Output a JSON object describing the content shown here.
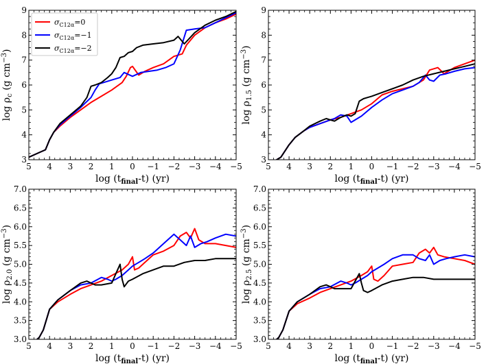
{
  "chart_data": [
    {
      "type": "line",
      "panel": "top-left",
      "xlabel": "log (t",
      "xlabel_sub": "final",
      "xlabel_tail": "-t) (yr)",
      "ylabel_prefix": "log ρ",
      "ylabel_sub": "c",
      "ylabel_suffix": " (g cm",
      "ylabel_sup": "−3",
      "ylabel_close": ")",
      "xlim": [
        5,
        -5
      ],
      "ylim": [
        3,
        9
      ],
      "xticks": [
        "5",
        "4",
        "3",
        "2",
        "1",
        "0",
        "−1",
        "−2",
        "−3",
        "−4",
        "−5"
      ],
      "yticks": [
        "3",
        "4",
        "5",
        "6",
        "7",
        "8",
        "9"
      ],
      "legend": {
        "position": "top-left",
        "entries": [
          {
            "label": "σ",
            "sub": "C12α",
            "value": "=0",
            "color": "#ff0000"
          },
          {
            "label": "σ",
            "sub": "C12α",
            "value": "=−1",
            "color": "#0000ff"
          },
          {
            "label": "σ",
            "sub": "C12α",
            "value": "=−2",
            "color": "#000000"
          }
        ]
      },
      "series": [
        {
          "name": "σC12α=0",
          "color": "#ff0000",
          "x": [
            5,
            4.6,
            4.2,
            4.0,
            3.8,
            3.5,
            3.0,
            2.5,
            2.0,
            1.5,
            1.0,
            0.5,
            0.3,
            0.1,
            0.0,
            -0.3,
            -0.6,
            -1.0,
            -1.5,
            -2.0,
            -2.2,
            -2.4,
            -2.6,
            -3.0,
            -3.5,
            -4.0,
            -4.5,
            -5.0
          ],
          "y": [
            3.1,
            3.25,
            3.4,
            3.8,
            4.1,
            4.35,
            4.7,
            5.0,
            5.3,
            5.55,
            5.8,
            6.1,
            6.35,
            6.7,
            6.75,
            6.4,
            6.55,
            6.7,
            6.85,
            7.15,
            7.2,
            7.25,
            7.6,
            8.0,
            8.3,
            8.5,
            8.65,
            8.85
          ]
        },
        {
          "name": "σC12α=−1",
          "color": "#0000ff",
          "x": [
            5,
            4.6,
            4.2,
            4.0,
            3.8,
            3.5,
            3.0,
            2.5,
            2.0,
            1.8,
            1.6,
            1.4,
            1.0,
            0.6,
            0.4,
            0.0,
            -0.4,
            -0.8,
            -1.2,
            -1.6,
            -2.0,
            -2.3,
            -2.6,
            -3.0,
            -3.5,
            -4.0,
            -4.5,
            -5.0
          ],
          "y": [
            3.1,
            3.25,
            3.4,
            3.8,
            4.1,
            4.4,
            4.75,
            5.1,
            5.5,
            5.8,
            6.05,
            6.1,
            6.2,
            6.3,
            6.5,
            6.35,
            6.5,
            6.55,
            6.6,
            6.7,
            6.85,
            7.4,
            8.2,
            8.25,
            8.3,
            8.5,
            8.7,
            8.9
          ]
        },
        {
          "name": "σC12α=−2",
          "color": "#000000",
          "x": [
            5,
            4.6,
            4.2,
            4.0,
            3.8,
            3.5,
            3.0,
            2.5,
            2.2,
            2.0,
            1.8,
            1.5,
            1.2,
            1.0,
            0.8,
            0.6,
            0.4,
            0.2,
            0.0,
            -0.2,
            -0.5,
            -1.0,
            -1.5,
            -2.0,
            -2.2,
            -2.5,
            -3.0,
            -3.5,
            -4.0,
            -4.5,
            -5.0
          ],
          "y": [
            3.1,
            3.25,
            3.4,
            3.8,
            4.1,
            4.45,
            4.8,
            5.15,
            5.5,
            5.95,
            6.0,
            6.1,
            6.3,
            6.45,
            6.7,
            7.1,
            7.15,
            7.3,
            7.35,
            7.5,
            7.6,
            7.65,
            7.7,
            7.8,
            7.95,
            7.65,
            8.1,
            8.4,
            8.6,
            8.75,
            8.95
          ]
        }
      ]
    },
    {
      "type": "line",
      "panel": "top-right",
      "xlabel": "log (t",
      "xlabel_sub": "final",
      "xlabel_tail": "-t) (yr)",
      "ylabel_prefix": "log ρ",
      "ylabel_sub": "1.5",
      "ylabel_suffix": " (g cm",
      "ylabel_sup": "−3",
      "ylabel_close": ")",
      "xlim": [
        5,
        -5
      ],
      "ylim": [
        3,
        9
      ],
      "xticks": [
        "5",
        "4",
        "3",
        "2",
        "1",
        "0",
        "−1",
        "−2",
        "−3",
        "−4",
        "−5"
      ],
      "yticks": [
        "3",
        "4",
        "5",
        "6",
        "7",
        "8",
        "9"
      ],
      "series": [
        {
          "name": "σC12α=0",
          "color": "#ff0000",
          "x": [
            4.8,
            4.4,
            4.0,
            3.7,
            3.3,
            3.0,
            2.5,
            2.0,
            1.5,
            1.0,
            0.5,
            0.0,
            -0.5,
            -1.0,
            -1.5,
            -2.0,
            -2.5,
            -2.8,
            -3.2,
            -3.5,
            -4.0,
            -4.5,
            -5.0
          ],
          "y": [
            2.9,
            3.1,
            3.6,
            3.9,
            4.15,
            4.3,
            4.45,
            4.6,
            4.7,
            4.85,
            5.0,
            5.25,
            5.6,
            5.75,
            5.85,
            5.95,
            6.2,
            6.6,
            6.7,
            6.45,
            6.7,
            6.85,
            7.0
          ]
        },
        {
          "name": "σC12α=−1",
          "color": "#0000ff",
          "x": [
            4.8,
            4.4,
            4.0,
            3.7,
            3.3,
            3.0,
            2.5,
            2.0,
            1.8,
            1.5,
            1.2,
            1.0,
            0.5,
            0.0,
            -0.5,
            -1.0,
            -1.5,
            -2.0,
            -2.3,
            -2.6,
            -2.8,
            -3.0,
            -3.3,
            -3.6,
            -4.0,
            -4.5,
            -5.0
          ],
          "y": [
            2.9,
            3.1,
            3.6,
            3.9,
            4.15,
            4.3,
            4.45,
            4.6,
            4.65,
            4.8,
            4.75,
            4.5,
            4.75,
            5.1,
            5.4,
            5.65,
            5.8,
            5.95,
            6.1,
            6.4,
            6.2,
            6.15,
            6.4,
            6.45,
            6.55,
            6.65,
            6.7
          ]
        },
        {
          "name": "σC12α=−2",
          "color": "#000000",
          "x": [
            4.8,
            4.4,
            4.0,
            3.7,
            3.3,
            3.0,
            2.5,
            2.2,
            2.0,
            1.8,
            1.5,
            1.2,
            1.0,
            0.8,
            0.6,
            0.4,
            0.2,
            0.0,
            -0.5,
            -1.0,
            -1.5,
            -2.0,
            -2.5,
            -3.0,
            -3.5,
            -4.0,
            -4.5,
            -5.0
          ],
          "y": [
            2.9,
            3.1,
            3.6,
            3.9,
            4.15,
            4.35,
            4.55,
            4.65,
            4.6,
            4.55,
            4.7,
            4.8,
            4.75,
            4.85,
            5.35,
            5.45,
            5.5,
            5.55,
            5.7,
            5.85,
            6.0,
            6.2,
            6.35,
            6.45,
            6.55,
            6.65,
            6.75,
            6.85
          ]
        }
      ]
    },
    {
      "type": "line",
      "panel": "bottom-left",
      "xlabel": "log (t",
      "xlabel_sub": "final",
      "xlabel_tail": "-t) (yr)",
      "ylabel_prefix": "log ρ",
      "ylabel_sub": "2.0",
      "ylabel_suffix": " (g cm",
      "ylabel_sup": "−3",
      "ylabel_close": ")",
      "xlim": [
        5,
        -5
      ],
      "ylim": [
        3.0,
        7.0
      ],
      "xticks": [
        "5",
        "4",
        "3",
        "2",
        "1",
        "0",
        "−1",
        "−2",
        "−3",
        "−4",
        "−5"
      ],
      "yticks": [
        "3.0",
        "3.5",
        "4.0",
        "4.5",
        "5.0",
        "5.5",
        "6.0",
        "6.5",
        "7.0"
      ],
      "series": [
        {
          "name": "σC12α=0",
          "color": "#ff0000",
          "x": [
            4.8,
            4.5,
            4.3,
            4.0,
            3.6,
            3.0,
            2.5,
            2.0,
            1.5,
            1.0,
            0.5,
            0.2,
            0.0,
            -0.1,
            -0.3,
            -0.6,
            -1.0,
            -1.5,
            -2.0,
            -2.3,
            -2.6,
            -2.8,
            -3.0,
            -3.2,
            -3.5,
            -4.0,
            -4.5,
            -5.0
          ],
          "y": [
            2.9,
            3.05,
            3.25,
            3.8,
            4.0,
            4.2,
            4.35,
            4.45,
            4.55,
            4.7,
            4.85,
            5.0,
            5.2,
            4.85,
            4.9,
            5.05,
            5.25,
            5.35,
            5.5,
            5.75,
            5.85,
            5.7,
            5.95,
            5.65,
            5.55,
            5.55,
            5.5,
            5.45
          ]
        },
        {
          "name": "σC12α=−1",
          "color": "#0000ff",
          "x": [
            4.8,
            4.5,
            4.3,
            4.0,
            3.6,
            3.0,
            2.5,
            2.0,
            1.5,
            1.2,
            1.0,
            0.8,
            0.5,
            0.2,
            0.0,
            -0.3,
            -0.6,
            -1.0,
            -1.5,
            -2.0,
            -2.3,
            -2.6,
            -2.8,
            -3.0,
            -3.3,
            -3.6,
            -4.0,
            -4.5,
            -5.0
          ],
          "y": [
            2.9,
            3.05,
            3.25,
            3.8,
            4.05,
            4.3,
            4.45,
            4.5,
            4.65,
            4.6,
            4.55,
            4.6,
            4.7,
            4.85,
            4.95,
            5.05,
            5.15,
            5.3,
            5.55,
            5.8,
            5.65,
            5.5,
            5.75,
            5.45,
            5.55,
            5.6,
            5.7,
            5.8,
            5.75
          ]
        },
        {
          "name": "σC12α=−2",
          "color": "#000000",
          "x": [
            4.8,
            4.5,
            4.3,
            4.0,
            3.6,
            3.0,
            2.5,
            2.2,
            2.0,
            1.8,
            1.5,
            1.0,
            0.8,
            0.6,
            0.5,
            0.4,
            0.2,
            0.0,
            -0.5,
            -1.0,
            -1.5,
            -2.0,
            -2.5,
            -3.0,
            -3.5,
            -4.0,
            -4.5,
            -5.0
          ],
          "y": [
            2.9,
            3.05,
            3.25,
            3.8,
            4.05,
            4.3,
            4.5,
            4.55,
            4.5,
            4.45,
            4.45,
            4.5,
            4.75,
            5.0,
            4.6,
            4.4,
            4.55,
            4.6,
            4.75,
            4.85,
            4.95,
            4.95,
            5.05,
            5.1,
            5.1,
            5.15,
            5.15,
            5.15
          ]
        }
      ]
    },
    {
      "type": "line",
      "panel": "bottom-right",
      "xlabel": "log (t",
      "xlabel_sub": "final",
      "xlabel_tail": "-t) (yr)",
      "ylabel_prefix": "log ρ",
      "ylabel_sub": "2.5",
      "ylabel_suffix": " (g cm",
      "ylabel_sup": "−3",
      "ylabel_close": ")",
      "xlim": [
        5,
        -5
      ],
      "ylim": [
        3.0,
        7.0
      ],
      "xticks": [
        "5",
        "4",
        "3",
        "2",
        "1",
        "0",
        "−1",
        "−2",
        "−3",
        "−4",
        "−5"
      ],
      "yticks": [
        "3.0",
        "3.5",
        "4.0",
        "4.5",
        "5.0",
        "5.5",
        "6.0",
        "6.5",
        "7.0"
      ],
      "series": [
        {
          "name": "σC12α=0",
          "color": "#ff0000",
          "x": [
            4.8,
            4.5,
            4.3,
            4.0,
            3.6,
            3.0,
            2.5,
            2.0,
            1.5,
            1.0,
            0.5,
            0.2,
            0.0,
            -0.1,
            -0.3,
            -0.6,
            -1.0,
            -1.5,
            -2.0,
            -2.3,
            -2.6,
            -2.8,
            -3.0,
            -3.2,
            -3.5,
            -4.0,
            -4.5,
            -5.0
          ],
          "y": [
            2.9,
            3.05,
            3.25,
            3.75,
            3.95,
            4.1,
            4.25,
            4.35,
            4.45,
            4.55,
            4.7,
            4.8,
            4.95,
            4.6,
            4.55,
            4.7,
            4.95,
            5.0,
            5.05,
            5.3,
            5.4,
            5.3,
            5.45,
            5.25,
            5.2,
            5.15,
            5.1,
            5.0
          ]
        },
        {
          "name": "σC12α=−1",
          "color": "#0000ff",
          "x": [
            4.8,
            4.5,
            4.3,
            4.0,
            3.6,
            3.0,
            2.5,
            2.0,
            1.5,
            1.2,
            1.0,
            0.8,
            0.5,
            0.2,
            0.0,
            -0.3,
            -0.6,
            -1.0,
            -1.5,
            -2.0,
            -2.3,
            -2.6,
            -2.8,
            -3.0,
            -3.3,
            -3.6,
            -4.0,
            -4.5,
            -5.0
          ],
          "y": [
            2.9,
            3.05,
            3.25,
            3.75,
            4.0,
            4.2,
            4.35,
            4.4,
            4.55,
            4.5,
            4.45,
            4.5,
            4.6,
            4.7,
            4.8,
            4.9,
            5.0,
            5.15,
            5.25,
            5.25,
            5.15,
            5.1,
            5.25,
            5.0,
            5.1,
            5.15,
            5.2,
            5.25,
            5.2
          ]
        },
        {
          "name": "σC12α=−2",
          "color": "#000000",
          "x": [
            4.8,
            4.5,
            4.3,
            4.0,
            3.6,
            3.0,
            2.5,
            2.2,
            2.0,
            1.8,
            1.5,
            1.0,
            0.8,
            0.6,
            0.5,
            0.4,
            0.2,
            0.0,
            -0.5,
            -1.0,
            -1.5,
            -2.0,
            -2.5,
            -3.0,
            -3.5,
            -4.0,
            -4.5,
            -5.0
          ],
          "y": [
            2.9,
            3.05,
            3.25,
            3.75,
            4.0,
            4.2,
            4.4,
            4.45,
            4.4,
            4.35,
            4.35,
            4.35,
            4.55,
            4.75,
            4.5,
            4.3,
            4.25,
            4.3,
            4.45,
            4.55,
            4.6,
            4.65,
            4.65,
            4.6,
            4.6,
            4.6,
            4.6,
            4.6
          ]
        }
      ]
    }
  ]
}
